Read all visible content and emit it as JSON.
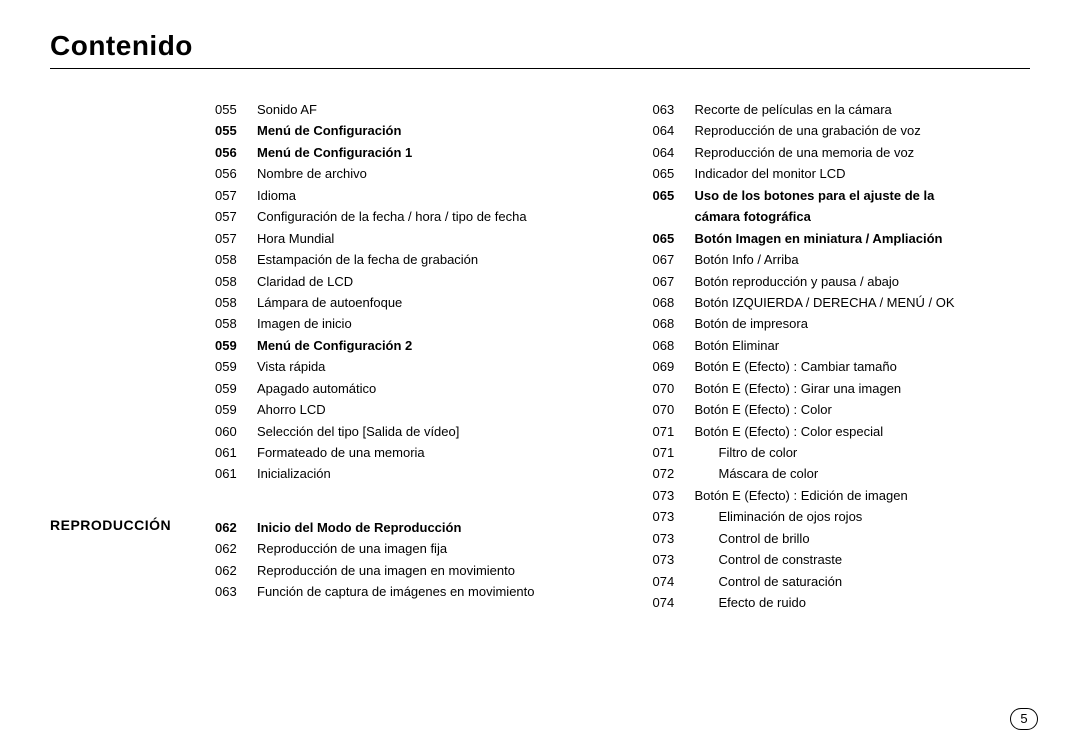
{
  "page_title": "Contenido",
  "page_number": "5",
  "section_heading": "REPRODUCCIÓN",
  "left": {
    "block1": [
      {
        "pg": "055",
        "label": "Sonido AF",
        "bold": false
      },
      {
        "pg": "055",
        "label": "Menú de Configuración",
        "bold": true
      },
      {
        "pg": "056",
        "label": "Menú de Configuración 1",
        "bold": true
      },
      {
        "pg": "056",
        "label": "Nombre de archivo",
        "bold": false
      },
      {
        "pg": "057",
        "label": "Idioma",
        "bold": false
      },
      {
        "pg": "057",
        "label": "Configuración de la fecha / hora / tipo de fecha",
        "bold": false
      },
      {
        "pg": "057",
        "label": "Hora Mundial",
        "bold": false
      },
      {
        "pg": "058",
        "label": "Estampación de la fecha de grabación",
        "bold": false
      },
      {
        "pg": "058",
        "label": "Claridad de LCD",
        "bold": false
      },
      {
        "pg": "058",
        "label": "Lámpara de autoenfoque",
        "bold": false
      },
      {
        "pg": "058",
        "label": "Imagen de inicio",
        "bold": false
      },
      {
        "pg": "059",
        "label": "Menú de Configuración 2",
        "bold": true
      },
      {
        "pg": "059",
        "label": "Vista rápida",
        "bold": false
      },
      {
        "pg": "059",
        "label": "Apagado automático",
        "bold": false
      },
      {
        "pg": "059",
        "label": "Ahorro LCD",
        "bold": false
      },
      {
        "pg": "060",
        "label": "Selección del tipo [Salida de vídeo]",
        "bold": false
      },
      {
        "pg": "061",
        "label": "Formateado de una memoria",
        "bold": false
      },
      {
        "pg": "061",
        "label": "Inicialización",
        "bold": false
      }
    ],
    "block2": [
      {
        "pg": "062",
        "label": "Inicio del Modo de Reproducción",
        "bold": true
      },
      {
        "pg": "062",
        "label": "Reproducción de una imagen fija",
        "bold": false
      },
      {
        "pg": "062",
        "label": "Reproducción de una imagen en movimiento",
        "bold": false
      },
      {
        "pg": "063",
        "label": "Función de captura de imágenes en movimiento",
        "bold": false
      }
    ]
  },
  "right": [
    {
      "pg": "063",
      "label": "Recorte de películas en la cámara",
      "bold": false,
      "indent": false
    },
    {
      "pg": "064",
      "label": "Reproducción de una grabación de voz",
      "bold": false,
      "indent": false
    },
    {
      "pg": "064",
      "label": "Reproducción de una memoria de voz",
      "bold": false,
      "indent": false
    },
    {
      "pg": "065",
      "label": "Indicador del monitor LCD",
      "bold": false,
      "indent": false
    },
    {
      "pg": "065",
      "label": "Uso de los botones para el ajuste de la",
      "bold": true,
      "indent": false
    },
    {
      "pg": "",
      "label": "cámara fotográfica",
      "bold": true,
      "indent": false
    },
    {
      "pg": "065",
      "label": "Botón Imagen en miniatura / Ampliación",
      "bold": true,
      "indent": false
    },
    {
      "pg": "067",
      "label": "Botón Info / Arriba",
      "bold": false,
      "indent": false
    },
    {
      "pg": "067",
      "label": "Botón reproducción y pausa / abajo",
      "bold": false,
      "indent": false
    },
    {
      "pg": "068",
      "label": "Botón IZQUIERDA / DERECHA / MENÚ / OK",
      "bold": false,
      "indent": false
    },
    {
      "pg": "068",
      "label": "Botón de impresora",
      "bold": false,
      "indent": false
    },
    {
      "pg": "068",
      "label": "Botón Eliminar",
      "bold": false,
      "indent": false
    },
    {
      "pg": "069",
      "label": "Botón E (Efecto) : Cambiar tamaño",
      "bold": false,
      "indent": false
    },
    {
      "pg": "070",
      "label": "Botón E (Efecto) : Girar una imagen",
      "bold": false,
      "indent": false
    },
    {
      "pg": "070",
      "label": "Botón E (Efecto) : Color",
      "bold": false,
      "indent": false
    },
    {
      "pg": "071",
      "label": "Botón E (Efecto) : Color especial",
      "bold": false,
      "indent": false
    },
    {
      "pg": "071",
      "label": "Filtro de color",
      "bold": false,
      "indent": true
    },
    {
      "pg": "072",
      "label": "Máscara de color",
      "bold": false,
      "indent": true
    },
    {
      "pg": "073",
      "label": "Botón E (Efecto) : Edición de imagen",
      "bold": false,
      "indent": false
    },
    {
      "pg": "073",
      "label": "Eliminación de ojos rojos",
      "bold": false,
      "indent": true
    },
    {
      "pg": "073",
      "label": "Control de brillo",
      "bold": false,
      "indent": true
    },
    {
      "pg": "073",
      "label": "Control de constraste",
      "bold": false,
      "indent": true
    },
    {
      "pg": "074",
      "label": "Control de saturación",
      "bold": false,
      "indent": true
    },
    {
      "pg": "074",
      "label": "Efecto de ruido",
      "bold": false,
      "indent": true
    }
  ]
}
